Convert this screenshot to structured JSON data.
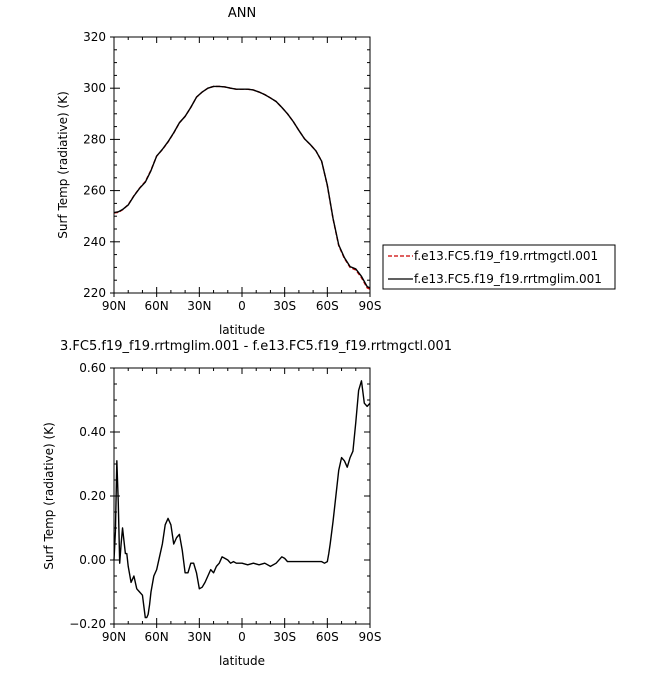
{
  "chart_data": [
    {
      "type": "line",
      "title": "ANN",
      "xlabel": "latitude",
      "ylabel": "Surf Temp (radiative) (K)",
      "xlim": [
        90,
        -90
      ],
      "ylim": [
        220,
        320
      ],
      "x_tick_labels": [
        "90N",
        "60N",
        "30N",
        "0",
        "30S",
        "60S",
        "90S"
      ],
      "y_tick_labels": [
        "220",
        "240",
        "260",
        "280",
        "300",
        "320"
      ],
      "grid": false,
      "legend_position": "right",
      "series": [
        {
          "name": "f.e13.FC5.f19_f19.rrtmgctl.001",
          "color": "#cc0000",
          "dash": "dashed",
          "x": [
            90,
            87,
            84,
            80,
            76,
            72,
            68,
            64,
            60,
            56,
            52,
            48,
            44,
            40,
            36,
            32,
            28,
            24,
            20,
            16,
            12,
            8,
            4,
            0,
            -4,
            -8,
            -12,
            -16,
            -20,
            -24,
            -28,
            -32,
            -36,
            -40,
            -44,
            -48,
            -52,
            -56,
            -60,
            -64,
            -68,
            -72,
            -76,
            -80,
            -84,
            -88,
            -90
          ],
          "y": [
            251.3,
            251.5,
            252.5,
            254.5,
            258,
            261,
            263.5,
            268,
            273.5,
            276,
            279,
            282.5,
            286.5,
            289,
            292.5,
            296.5,
            298.5,
            300,
            300.7,
            300.7,
            300.5,
            300,
            299.6,
            299.6,
            299.6,
            299.3,
            298.5,
            297.5,
            296.2,
            294.8,
            292.5,
            290,
            287,
            283.5,
            280.2,
            278,
            275.5,
            271.5,
            262,
            249,
            238.5,
            233.5,
            230,
            229,
            226,
            222,
            221.5
          ]
        },
        {
          "name": "f.e13.FC5.f19_f19.rrtmglim.001",
          "color": "#000000",
          "dash": "solid",
          "x": [
            90,
            87,
            84,
            80,
            76,
            72,
            68,
            64,
            60,
            56,
            52,
            48,
            44,
            40,
            36,
            32,
            28,
            24,
            20,
            16,
            12,
            8,
            4,
            0,
            -4,
            -8,
            -12,
            -16,
            -20,
            -24,
            -28,
            -32,
            -36,
            -40,
            -44,
            -48,
            -52,
            -56,
            -60,
            -64,
            -68,
            -72,
            -76,
            -80,
            -84,
            -88,
            -90
          ],
          "y": [
            251.4,
            251.7,
            252.6,
            254.4,
            257.9,
            260.9,
            263.3,
            267.8,
            273.5,
            276.1,
            279.1,
            282.6,
            286.5,
            289,
            292.5,
            296.5,
            298.5,
            300,
            300.7,
            300.7,
            300.5,
            300,
            299.6,
            299.6,
            299.6,
            299.3,
            298.5,
            297.5,
            296.2,
            294.8,
            292.5,
            290,
            287,
            283.5,
            280.2,
            278,
            275.5,
            271.5,
            262.1,
            249.2,
            238.8,
            233.8,
            230.3,
            229.4,
            226.5,
            222.5,
            222
          ]
        }
      ]
    },
    {
      "type": "line",
      "title": "3.FC5.f19_f19.rrtmglim.001 - f.e13.FC5.f19_f19.rrtmgctl.001",
      "xlabel": "latitude",
      "ylabel": "Surf Temp (radiative) (K)",
      "xlim": [
        90,
        -90
      ],
      "ylim": [
        -0.2,
        0.6
      ],
      "x_tick_labels": [
        "90N",
        "60N",
        "30N",
        "0",
        "30S",
        "60S",
        "90S"
      ],
      "y_tick_labels": [
        "−0.20",
        "0.00",
        "0.20",
        "0.40",
        "0.60"
      ],
      "grid": false,
      "series": [
        {
          "color": "#000000",
          "dash": "solid",
          "x": [
            90,
            89,
            88,
            87,
            86,
            85,
            84,
            83,
            82,
            81,
            80,
            78,
            77,
            76,
            74,
            72,
            70,
            68,
            67,
            66,
            65,
            64,
            62,
            60,
            58,
            56,
            54,
            52,
            50,
            48,
            46,
            44,
            42,
            40,
            38,
            36,
            34,
            32,
            30,
            28,
            26,
            24,
            22,
            20,
            18,
            16,
            14,
            12,
            10,
            8,
            6,
            4,
            2,
            0,
            -4,
            -8,
            -12,
            -16,
            -20,
            -24,
            -28,
            -30,
            -32,
            -36,
            -40,
            -44,
            -48,
            -52,
            -56,
            -58,
            -60,
            -61,
            -62,
            -64,
            -66,
            -68,
            -70,
            -72,
            -74,
            -76,
            -78,
            -80,
            -82,
            -84,
            -86,
            -88,
            -90
          ],
          "y": [
            0.0,
            0.09,
            0.31,
            0.18,
            -0.01,
            0.05,
            0.1,
            0.06,
            0.02,
            0.02,
            -0.02,
            -0.07,
            -0.06,
            -0.05,
            -0.09,
            -0.1,
            -0.11,
            -0.18,
            -0.18,
            -0.17,
            -0.14,
            -0.1,
            -0.05,
            -0.03,
            0.01,
            0.05,
            0.11,
            0.13,
            0.11,
            0.05,
            0.07,
            0.08,
            0.03,
            -0.04,
            -0.04,
            -0.01,
            -0.01,
            -0.04,
            -0.09,
            -0.085,
            -0.07,
            -0.05,
            -0.03,
            -0.04,
            -0.02,
            -0.01,
            0.01,
            0.005,
            0.0,
            -0.01,
            -0.005,
            -0.01,
            -0.01,
            -0.01,
            -0.015,
            -0.01,
            -0.015,
            -0.01,
            -0.02,
            -0.01,
            0.01,
            0.005,
            -0.005,
            -0.005,
            -0.005,
            -0.005,
            -0.005,
            -0.005,
            -0.005,
            -0.01,
            -0.005,
            0.02,
            0.05,
            0.12,
            0.2,
            0.28,
            0.32,
            0.31,
            0.29,
            0.32,
            0.34,
            0.43,
            0.53,
            0.56,
            0.49,
            0.48,
            0.49
          ]
        }
      ]
    }
  ]
}
